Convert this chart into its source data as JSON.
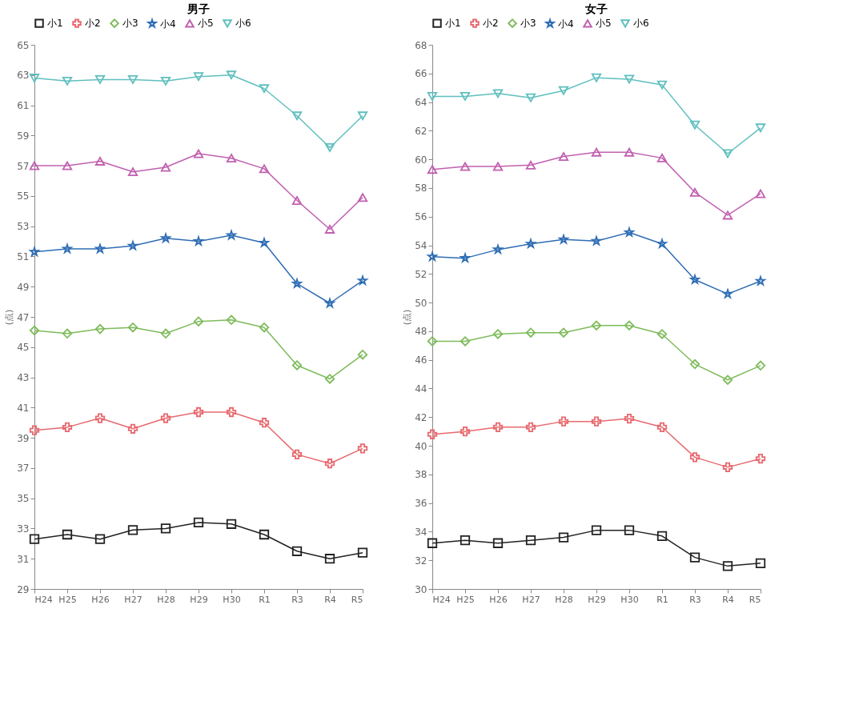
{
  "chart_data": [
    {
      "type": "line",
      "title": "男子",
      "ylabel": "(点)",
      "categories": [
        "H24",
        "H25",
        "H26",
        "H27",
        "H28",
        "H29",
        "H30",
        "R1",
        "R3",
        "R4",
        "R5"
      ],
      "ylim": [
        29,
        65
      ],
      "yticks": [
        29,
        31,
        33,
        35,
        37,
        39,
        41,
        43,
        45,
        47,
        49,
        51,
        53,
        55,
        57,
        59,
        61,
        63,
        65
      ],
      "legend": "top",
      "grid": false,
      "line_style": "solid",
      "series": [
        {
          "name": "小1",
          "color": "#222222",
          "marker": "square",
          "values": [
            32.3,
            32.6,
            32.3,
            32.9,
            33.0,
            33.4,
            33.3,
            32.6,
            31.5,
            31.0,
            31.4
          ]
        },
        {
          "name": "小2",
          "color": "#e8696e",
          "marker": "cross",
          "values": [
            39.5,
            39.7,
            40.3,
            39.6,
            40.3,
            40.7,
            40.7,
            40.0,
            37.9,
            37.3,
            38.3
          ]
        },
        {
          "name": "小3",
          "color": "#7dbb5a",
          "marker": "diamond",
          "values": [
            46.1,
            45.9,
            46.2,
            46.3,
            45.9,
            46.7,
            46.8,
            46.3,
            43.8,
            42.9,
            44.5
          ]
        },
        {
          "name": "小4",
          "color": "#2f6db5",
          "marker": "star",
          "values": [
            51.3,
            51.5,
            51.5,
            51.7,
            52.2,
            52.0,
            52.4,
            51.9,
            49.2,
            47.9,
            49.4
          ]
        },
        {
          "name": "小5",
          "color": "#c160b0",
          "marker": "triangle",
          "values": [
            57.0,
            57.0,
            57.3,
            56.6,
            56.9,
            57.8,
            57.5,
            56.8,
            54.7,
            52.8,
            54.9
          ]
        },
        {
          "name": "小6",
          "color": "#5fbfbf",
          "marker": "triangle-down",
          "values": [
            62.8,
            62.6,
            62.7,
            62.7,
            62.6,
            62.9,
            63.0,
            62.1,
            60.3,
            58.2,
            60.3
          ]
        }
      ]
    },
    {
      "type": "line",
      "title": "女子",
      "ylabel": "(点)",
      "categories": [
        "H24",
        "H25",
        "H26",
        "H27",
        "H28",
        "H29",
        "H30",
        "R1",
        "R3",
        "R4",
        "R5"
      ],
      "ylim": [
        30,
        68
      ],
      "yticks": [
        30,
        32,
        34,
        36,
        38,
        40,
        42,
        44,
        46,
        48,
        50,
        52,
        54,
        56,
        58,
        60,
        62,
        64,
        66,
        68
      ],
      "legend": "top",
      "grid": false,
      "line_style": "solid",
      "series": [
        {
          "name": "小1",
          "color": "#222222",
          "marker": "square",
          "values": [
            33.2,
            33.4,
            33.2,
            33.4,
            33.6,
            34.1,
            34.1,
            33.7,
            32.2,
            31.6,
            31.8
          ]
        },
        {
          "name": "小2",
          "color": "#e8696e",
          "marker": "cross",
          "values": [
            40.8,
            41.0,
            41.3,
            41.3,
            41.7,
            41.7,
            41.9,
            41.3,
            39.2,
            38.5,
            39.1
          ]
        },
        {
          "name": "小3",
          "color": "#7dbb5a",
          "marker": "diamond",
          "values": [
            47.3,
            47.3,
            47.8,
            47.9,
            47.9,
            48.4,
            48.4,
            47.8,
            45.7,
            44.6,
            45.6
          ]
        },
        {
          "name": "小4",
          "color": "#2f6db5",
          "marker": "star",
          "values": [
            53.2,
            53.1,
            53.7,
            54.1,
            54.4,
            54.3,
            54.9,
            54.1,
            51.6,
            50.6,
            51.5
          ]
        },
        {
          "name": "小5",
          "color": "#c160b0",
          "marker": "triangle",
          "values": [
            59.3,
            59.5,
            59.5,
            59.6,
            60.2,
            60.5,
            60.5,
            60.1,
            57.7,
            56.1,
            57.6
          ]
        },
        {
          "name": "小6",
          "color": "#5fbfbf",
          "marker": "triangle-down",
          "values": [
            64.4,
            64.4,
            64.6,
            64.3,
            64.8,
            65.7,
            65.6,
            65.2,
            62.4,
            60.4,
            62.2
          ]
        }
      ]
    }
  ]
}
